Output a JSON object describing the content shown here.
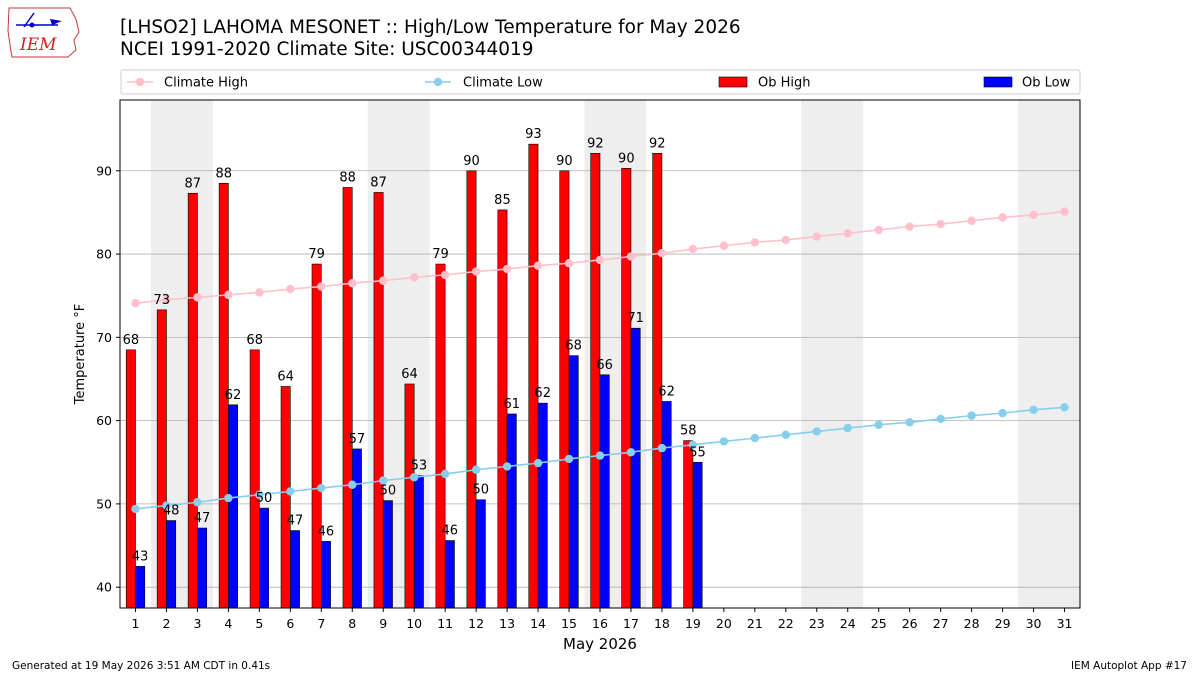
{
  "header": {
    "title_line1": "[LHSO2] LAHOMA MESONET :: High/Low Temperature for May 2026",
    "title_line2": "NCEI 1991-2020 Climate Site: USC00344019",
    "logo_text": "IEM"
  },
  "footer": {
    "generated": "Generated at 19 May 2026 3:51 AM CDT in 0.41s",
    "app": "IEM Autoplot App #17"
  },
  "colors": {
    "ob_high": "#ff0000",
    "ob_low": "#0000ff",
    "climate_high": "#ffc0cb",
    "climate_low": "#87ceeb",
    "weekend_shade": "#eeeeee",
    "grid": "#b0b0b0"
  },
  "chart_data": {
    "type": "bar",
    "title": "[LHSO2] LAHOMA MESONET :: High/Low Temperature for May 2026",
    "subtitle": "NCEI 1991-2020 Climate Site: USC00344019",
    "xlabel": "May 2026",
    "ylabel": "Temperature °F",
    "xlim": [
      0.5,
      31.5
    ],
    "ylim": [
      37.5,
      98.5
    ],
    "yticks": [
      40,
      50,
      60,
      70,
      80,
      90
    ],
    "grid": "horizontal",
    "legend_position": "top",
    "days": [
      1,
      2,
      3,
      4,
      5,
      6,
      7,
      8,
      9,
      10,
      11,
      12,
      13,
      14,
      15,
      16,
      17,
      18,
      19,
      20,
      21,
      22,
      23,
      24,
      25,
      26,
      27,
      28,
      29,
      30,
      31
    ],
    "weekend_days": [
      2,
      3,
      9,
      10,
      16,
      17,
      23,
      24,
      30,
      31
    ],
    "series": [
      {
        "name": "Ob High",
        "kind": "bar",
        "color": "#ff0000",
        "values": [
          68.5,
          73.3,
          87.3,
          88.5,
          68.5,
          64.1,
          78.8,
          88.0,
          87.4,
          64.4,
          78.8,
          90.0,
          85.3,
          93.2,
          90.0,
          92.1,
          90.3,
          92.1,
          57.6
        ],
        "labels": [
          "68",
          "73",
          "87",
          "88",
          "68",
          "64",
          "79",
          "88",
          "87",
          "64",
          "79",
          "90",
          "85",
          "93",
          "90",
          "92",
          "90",
          "92",
          "58"
        ]
      },
      {
        "name": "Ob Low",
        "kind": "bar",
        "color": "#0000ff",
        "values": [
          42.5,
          48.0,
          47.1,
          61.9,
          49.5,
          46.8,
          45.5,
          56.6,
          50.4,
          53.4,
          45.6,
          50.5,
          60.8,
          62.1,
          67.8,
          65.5,
          71.1,
          62.3,
          55.0
        ],
        "labels": [
          "43",
          "48",
          "47",
          "62",
          "50",
          "47",
          "46",
          "57",
          "50",
          "53",
          "46",
          "50",
          "61",
          "62",
          "68",
          "66",
          "71",
          "62",
          "55"
        ]
      },
      {
        "name": "Climate High",
        "kind": "line",
        "color": "#ffc0cb",
        "values": [
          74.1,
          74.5,
          74.8,
          75.1,
          75.4,
          75.8,
          76.1,
          76.5,
          76.8,
          77.2,
          77.5,
          77.9,
          78.2,
          78.6,
          78.9,
          79.3,
          79.7,
          80.1,
          80.6,
          81.0,
          81.4,
          81.7,
          82.1,
          82.5,
          82.9,
          83.3,
          83.6,
          84.0,
          84.4,
          84.7,
          85.1
        ]
      },
      {
        "name": "Climate Low",
        "kind": "line",
        "color": "#87ceeb",
        "values": [
          49.4,
          49.8,
          50.2,
          50.7,
          51.1,
          51.5,
          51.9,
          52.3,
          52.8,
          53.2,
          53.6,
          54.1,
          54.5,
          54.9,
          55.4,
          55.8,
          56.2,
          56.7,
          57.1,
          57.5,
          57.9,
          58.3,
          58.7,
          59.1,
          59.5,
          59.8,
          60.2,
          60.6,
          60.9,
          61.3,
          61.6
        ]
      }
    ]
  }
}
